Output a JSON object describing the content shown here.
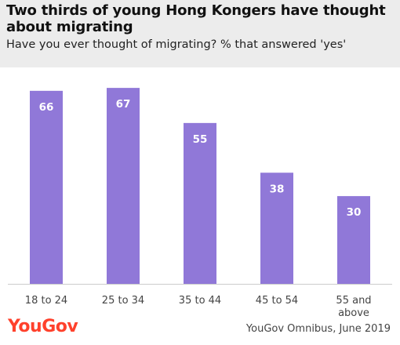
{
  "header": {
    "title": "Two thirds of young Hong Kongers have thought about migrating",
    "subtitle": "Have you ever thought of migrating? % that answered 'yes'"
  },
  "footer": {
    "logo_text": "YouGov",
    "source": "YouGov Omnibus, June 2019"
  },
  "colors": {
    "bar": "#9078d8",
    "header_bg": "#ececec",
    "brand": "#ff412c"
  },
  "chart_data": {
    "type": "bar",
    "title": "Two thirds of young Hong Kongers have thought about migrating",
    "subtitle": "Have you ever thought of migrating? % that answered 'yes'",
    "categories": [
      "18 to 24",
      "25 to 34",
      "35 to 44",
      "45 to 54",
      "55 and above"
    ],
    "category_lines": [
      [
        "18 to 24"
      ],
      [
        "25 to 34"
      ],
      [
        "35 to 44"
      ],
      [
        "45 to 54"
      ],
      [
        "55 and",
        "above"
      ]
    ],
    "values": [
      66,
      67,
      55,
      38,
      30
    ],
    "xlabel": "",
    "ylabel": "",
    "ylim": [
      0,
      74
    ],
    "grid": false,
    "data_labels": true
  }
}
